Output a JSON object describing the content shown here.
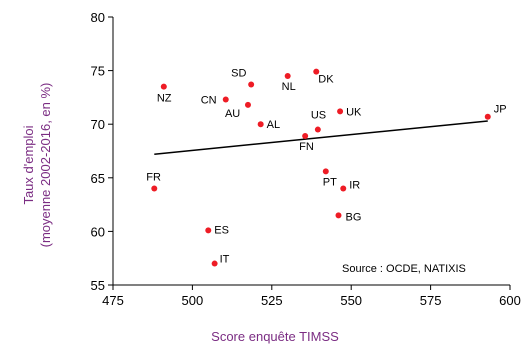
{
  "chart_data": {
    "type": "scatter",
    "xlabel": "Score enquête TIMSS",
    "ylabel_lines": [
      "Taux d'emploi",
      "(moyenne 2002-2016, en %)"
    ],
    "xlim": [
      475,
      600
    ],
    "ylim": [
      55,
      80
    ],
    "x_ticks": [
      475,
      500,
      525,
      550,
      575,
      600
    ],
    "y_ticks": [
      55,
      60,
      65,
      70,
      75,
      80
    ],
    "grid": false,
    "source": "Source : OCDE, NATIXIS",
    "points": [
      {
        "label": "JP",
        "x": 593,
        "y": 70.7
      },
      {
        "label": "SD",
        "x": 518.5,
        "y": 73.7
      },
      {
        "label": "NL",
        "x": 530,
        "y": 74.5
      },
      {
        "label": "DK",
        "x": 539,
        "y": 74.9
      },
      {
        "label": "NZ",
        "x": 491,
        "y": 73.5
      },
      {
        "label": "CN",
        "x": 510.5,
        "y": 72.3
      },
      {
        "label": "AU",
        "x": 517.5,
        "y": 71.8
      },
      {
        "label": "UK",
        "x": 546.5,
        "y": 71.2
      },
      {
        "label": "AL",
        "x": 521.5,
        "y": 70.0
      },
      {
        "label": "US",
        "x": 539.5,
        "y": 69.5
      },
      {
        "label": "FN",
        "x": 535.5,
        "y": 68.9
      },
      {
        "label": "PT",
        "x": 542,
        "y": 65.6
      },
      {
        "label": "IR",
        "x": 547.5,
        "y": 64.0
      },
      {
        "label": "FR",
        "x": 488,
        "y": 64.0
      },
      {
        "label": "BG",
        "x": 546,
        "y": 61.5
      },
      {
        "label": "ES",
        "x": 505,
        "y": 60.1
      },
      {
        "label": "IT",
        "x": 507,
        "y": 57.0
      }
    ],
    "trendline": {
      "x": [
        488,
        593
      ],
      "y": [
        67.2,
        70.3
      ]
    },
    "colors": {
      "points": "#ee1c25",
      "trendline": "#000000",
      "axis": "#000000",
      "axis_title": "#7b2d83"
    }
  }
}
